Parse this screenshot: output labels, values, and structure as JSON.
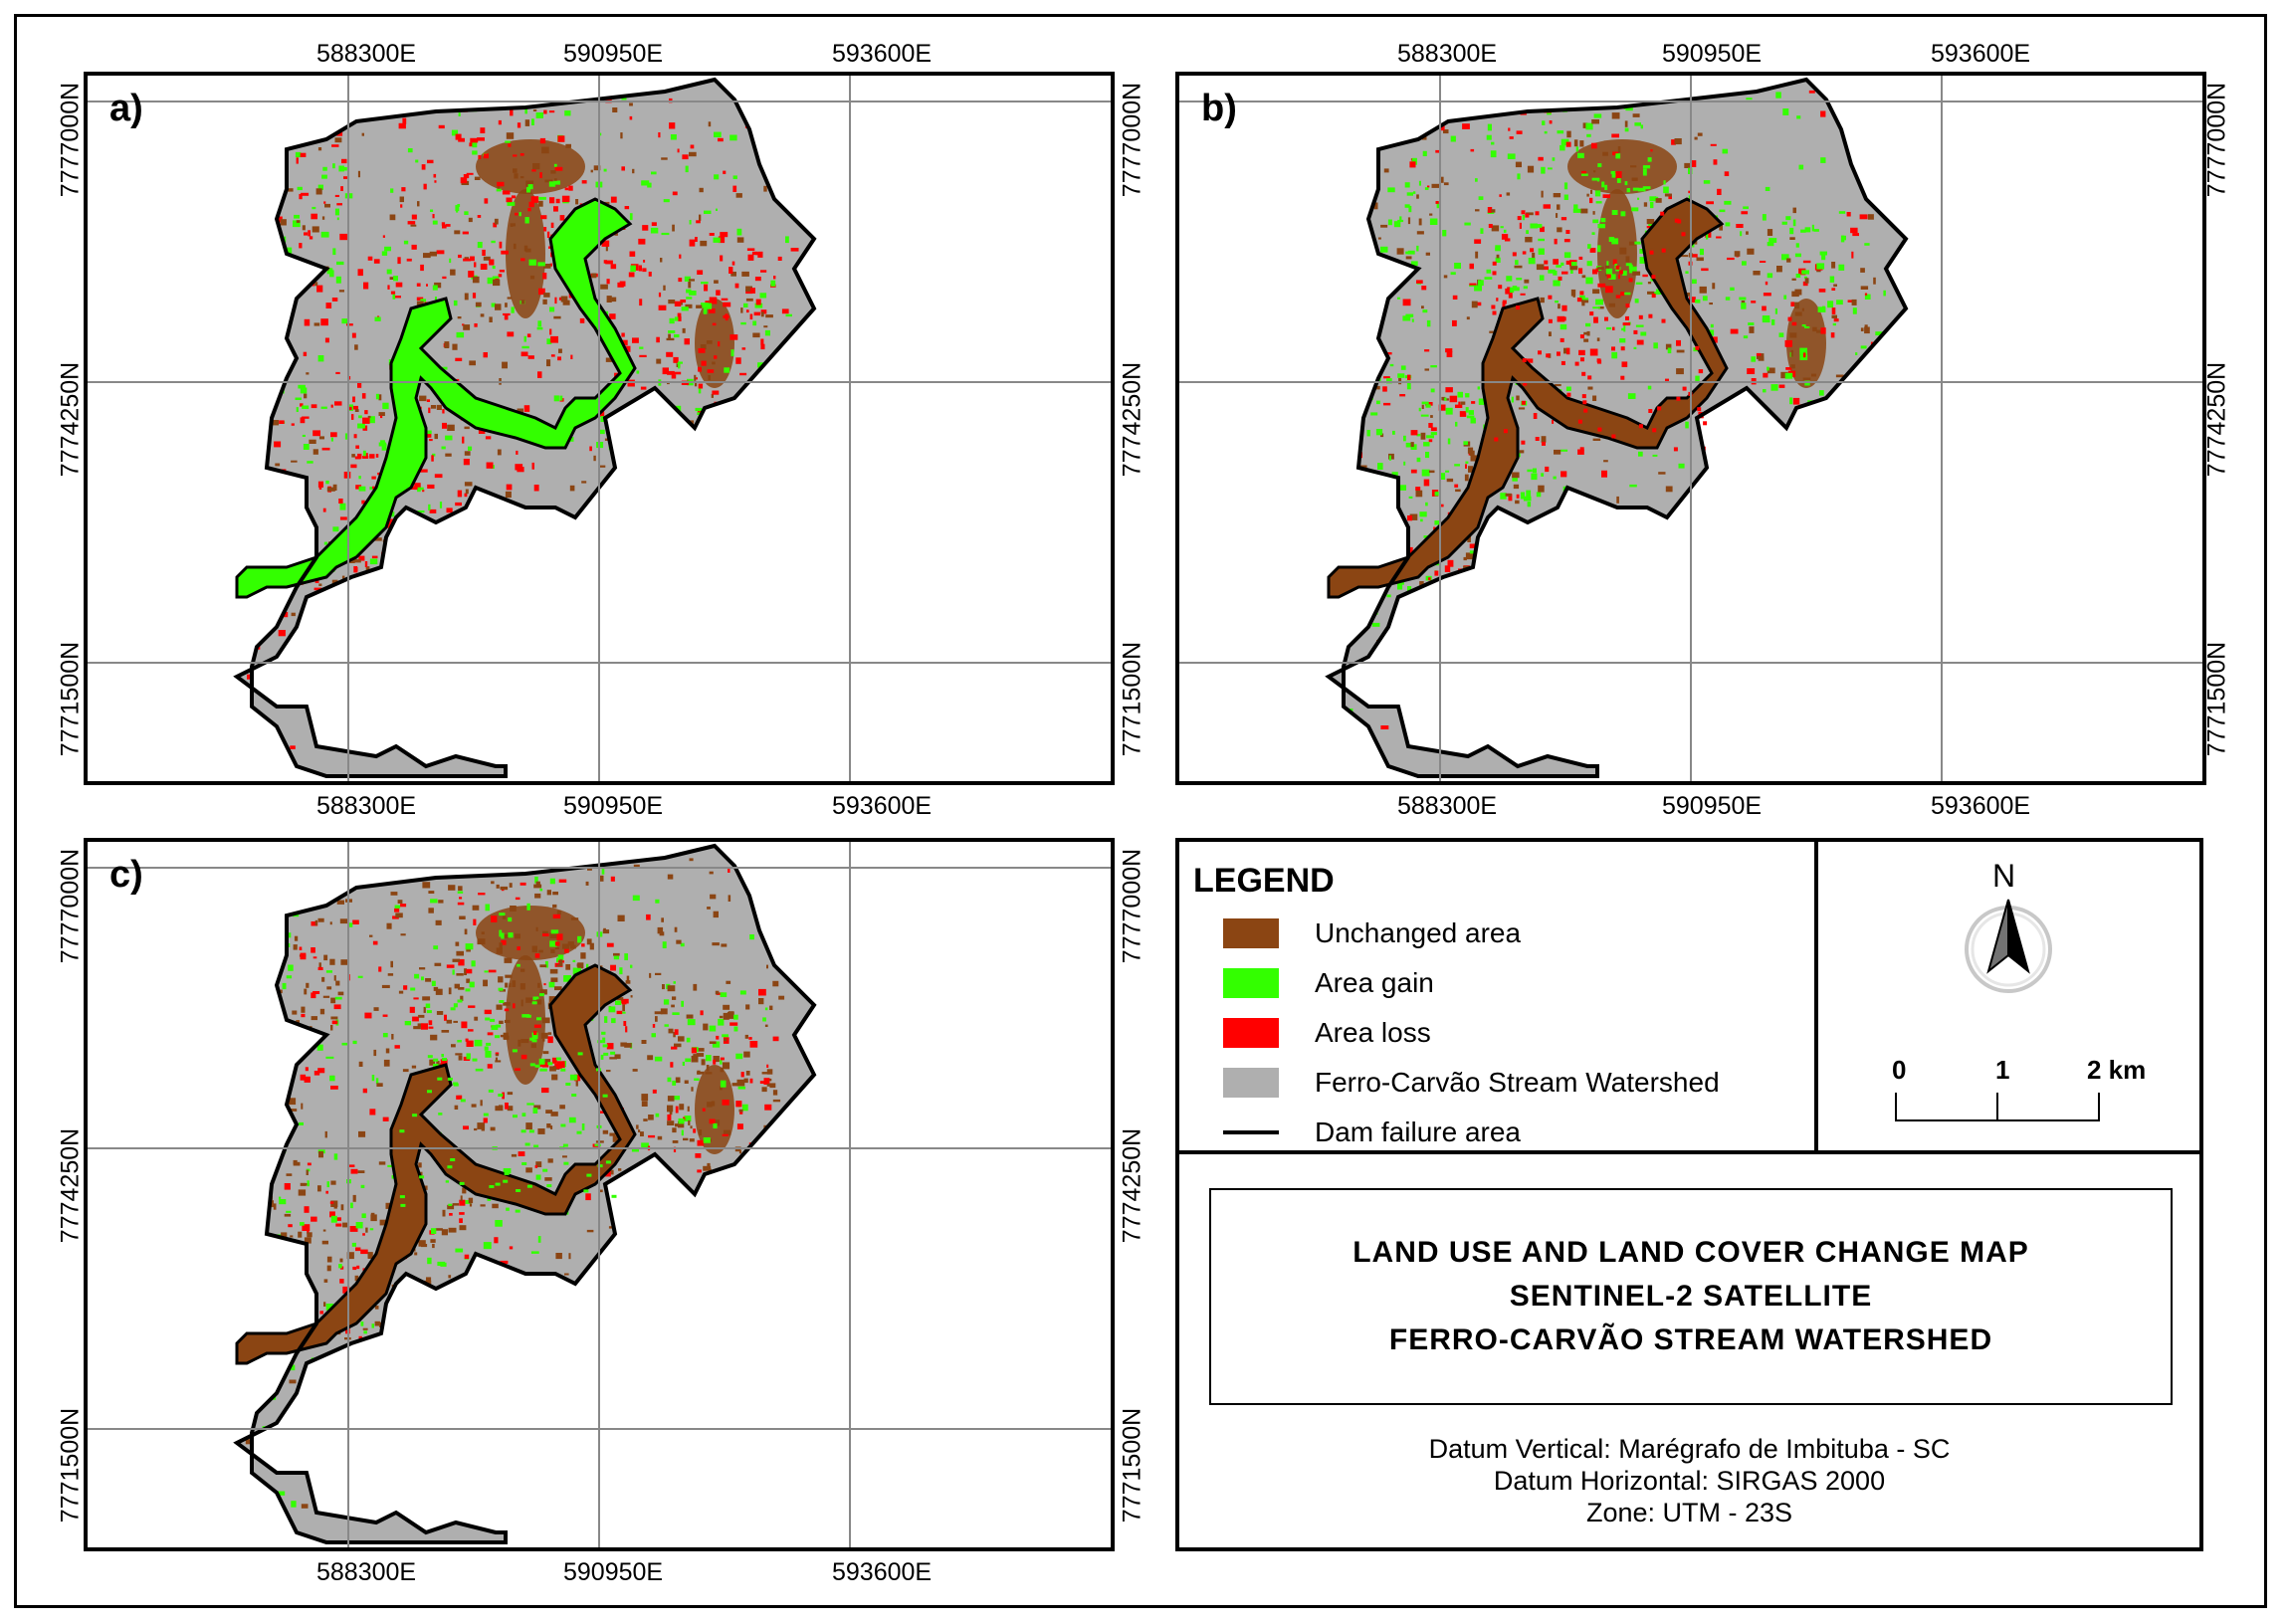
{
  "panels": [
    {
      "label": "a)",
      "variant": "gain"
    },
    {
      "label": "b)",
      "variant": "loss"
    },
    {
      "label": "c)",
      "variant": "mixed"
    }
  ],
  "easting_labels": [
    "588300E",
    "590950E",
    "593600E"
  ],
  "northing_labels": [
    "7777000N",
    "7774250N",
    "7771500N"
  ],
  "legend": {
    "title": "LEGEND",
    "items": [
      {
        "label": "Unchanged area",
        "color": "#8B4513",
        "kind": "fill"
      },
      {
        "label": "Area gain",
        "color": "#33FF00",
        "kind": "fill"
      },
      {
        "label": "Area loss",
        "color": "#FF0000",
        "kind": "fill"
      },
      {
        "label": "Ferro-Carvão Stream Watershed",
        "color": "#AFAFAF",
        "kind": "fill"
      },
      {
        "label": "Dam failure area",
        "color": "#000000",
        "kind": "line"
      }
    ]
  },
  "north_arrow": {
    "label": "N",
    "icon": "north-arrow-icon"
  },
  "scale_bar": {
    "labels": [
      "0",
      "1",
      "2 km"
    ]
  },
  "title_block": {
    "lines": [
      "LAND USE AND LAND COVER CHANGE MAP",
      "SENTINEL-2  SATELLITE",
      "FERRO-CARVÃO STREAM WATERSHED"
    ]
  },
  "datum": {
    "vertical": "Datum Vertical: Marégrafo de Imbituba - SC",
    "horizontal": "Datum Horizontal: SIRGAS 2000",
    "zone": "Zone: UTM - 23S"
  },
  "colors": {
    "unchanged": "#8B4513",
    "gain": "#33FF00",
    "loss": "#FF0000",
    "watershed": "#AFAFAF",
    "grid": "#888888"
  }
}
